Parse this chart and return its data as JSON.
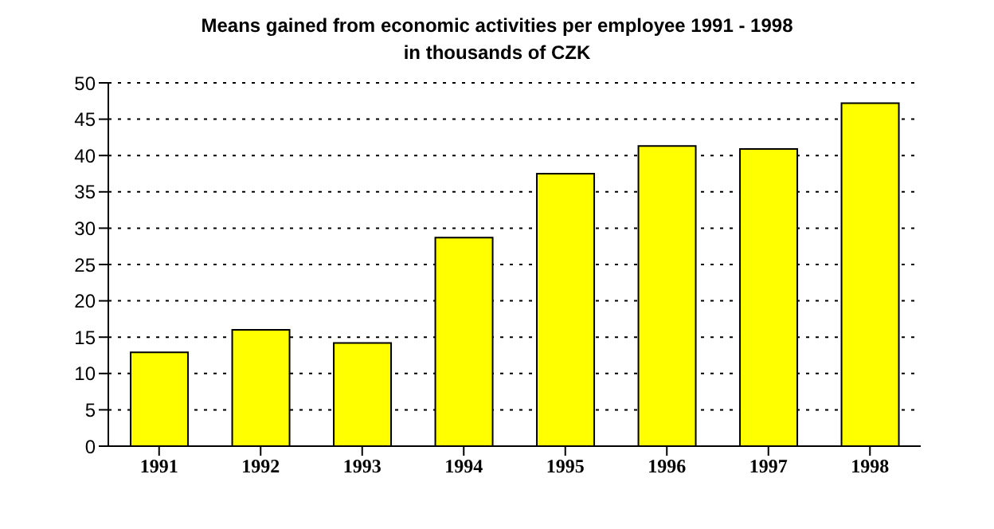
{
  "chart_data": {
    "type": "bar",
    "title": "Means gained from economic activities per employee 1991 - 1998",
    "subtitle": "in thousands of CZK",
    "categories": [
      "1991",
      "1992",
      "1993",
      "1994",
      "1995",
      "1996",
      "1997",
      "1998"
    ],
    "values": [
      12.9,
      16.0,
      14.2,
      28.7,
      37.5,
      41.3,
      40.9,
      47.2
    ],
    "color": "#ffff00",
    "ylim": [
      0,
      50
    ],
    "yticks": [
      0,
      5,
      10,
      15,
      20,
      25,
      30,
      35,
      40,
      45,
      50
    ],
    "grid": "y"
  }
}
